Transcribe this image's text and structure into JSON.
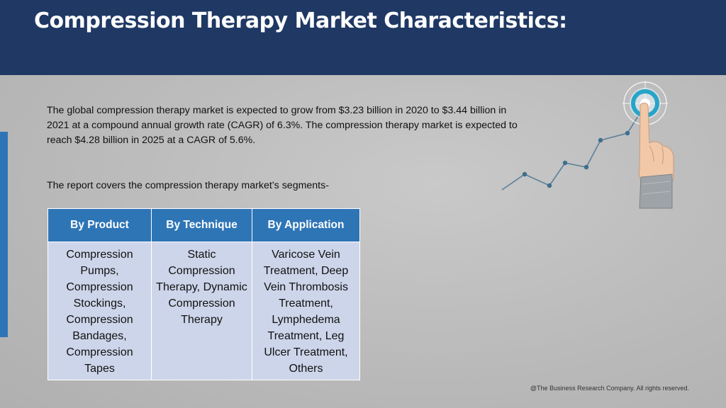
{
  "title": "Compression Therapy Market Characteristics:",
  "intro_paragraph": "The global compression therapy market is expected to grow from $3.23 billion in 2020 to $3.44 billion in 2021 at a compound annual growth rate (CAGR) of 6.3%. The compression therapy market is expected to reach $4.28 billion in 2025 at a CAGR of 5.6%.",
  "segments_intro": "The report covers the compression therapy market’s segments-",
  "table": {
    "headers": [
      "By Product",
      "By Technique",
      "By Application"
    ],
    "cells": [
      "Compression Pumps, Compression Stockings, Compression Bandages, Compression Tapes",
      "Static Compression Therapy, Dynamic Compression Therapy",
      "Varicose Vein Treatment, Deep Vein Thrombosis Treatment, Lymphedema Treatment, Leg Ulcer Treatment, Others"
    ]
  },
  "footer": "@The Business Research Company. All rights reserved.",
  "colors": {
    "header": "#1f3864",
    "accent": "#2e75b6",
    "cell": "#cdd5ea"
  },
  "icons": [
    "hand-pointing-target-icon",
    "growth-line-icon"
  ]
}
